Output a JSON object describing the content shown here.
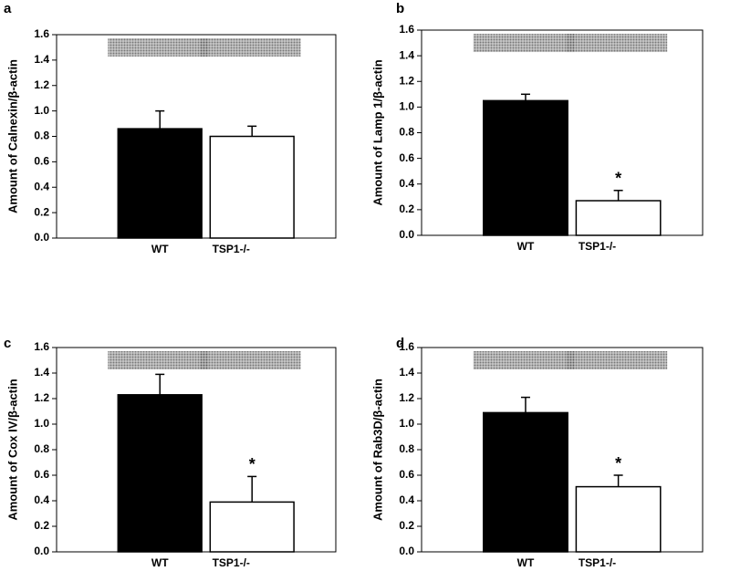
{
  "chart_data": [
    {
      "type": "bar",
      "panel": "a",
      "ylabel": "Amount of Calnexin/β-actin",
      "categories": [
        "WT",
        "TSP1-/-"
      ],
      "values": [
        0.86,
        0.8
      ],
      "errors": [
        0.14,
        0.08
      ],
      "value_annotations": [
        null,
        null
      ],
      "colors": [
        "#000000",
        "#ffffff"
      ],
      "ylim": [
        0,
        1.6
      ],
      "yticks": [
        {
          "value": 0,
          "label": "0.0"
        },
        0.2,
        0.4,
        0.6,
        0.8,
        {
          "value": 1,
          "label": "1.0"
        },
        1.2,
        1.4,
        1.6
      ]
    },
    {
      "type": "bar",
      "panel": "b",
      "ylabel": "Amount of Lamp 1/β-actin",
      "categories": [
        "WT",
        "TSP1-/-"
      ],
      "values": [
        1.05,
        0.27
      ],
      "errors": [
        0.05,
        0.08
      ],
      "value_annotations": [
        null,
        "*"
      ],
      "colors": [
        "#000000",
        "#ffffff"
      ],
      "ylim": [
        0,
        1.6
      ],
      "yticks": [
        {
          "value": 0,
          "label": "0.0"
        },
        0.2,
        0.4,
        0.6,
        0.8,
        {
          "value": 1,
          "label": "1.0"
        },
        1.2,
        1.4,
        1.6
      ]
    },
    {
      "type": "bar",
      "panel": "c",
      "ylabel": "Amount of Cox IV/β-actin",
      "categories": [
        "WT",
        "TSP1-/-"
      ],
      "values": [
        1.23,
        0.39
      ],
      "errors": [
        0.16,
        0.2
      ],
      "value_annotations": [
        null,
        "*"
      ],
      "colors": [
        "#000000",
        "#ffffff"
      ],
      "ylim": [
        0,
        1.6
      ],
      "yticks": [
        {
          "value": 0,
          "label": "0.0"
        },
        0.2,
        0.4,
        0.6,
        0.8,
        {
          "value": 1,
          "label": "1.0"
        },
        1.2,
        1.4,
        1.6
      ]
    },
    {
      "type": "bar",
      "panel": "d",
      "ylabel": "Amount of Rab3D/β-actin",
      "categories": [
        "WT",
        "TSP1-/-"
      ],
      "values": [
        1.09,
        0.51
      ],
      "errors": [
        0.12,
        0.09
      ],
      "value_annotations": [
        null,
        "*"
      ],
      "colors": [
        "#000000",
        "#ffffff"
      ],
      "ylim": [
        0,
        1.6
      ],
      "yticks": [
        {
          "value": 0,
          "label": "0.0"
        },
        0.2,
        0.4,
        0.6,
        0.8,
        {
          "value": 1,
          "label": "1.0"
        },
        1.2,
        1.4,
        1.6
      ]
    }
  ]
}
